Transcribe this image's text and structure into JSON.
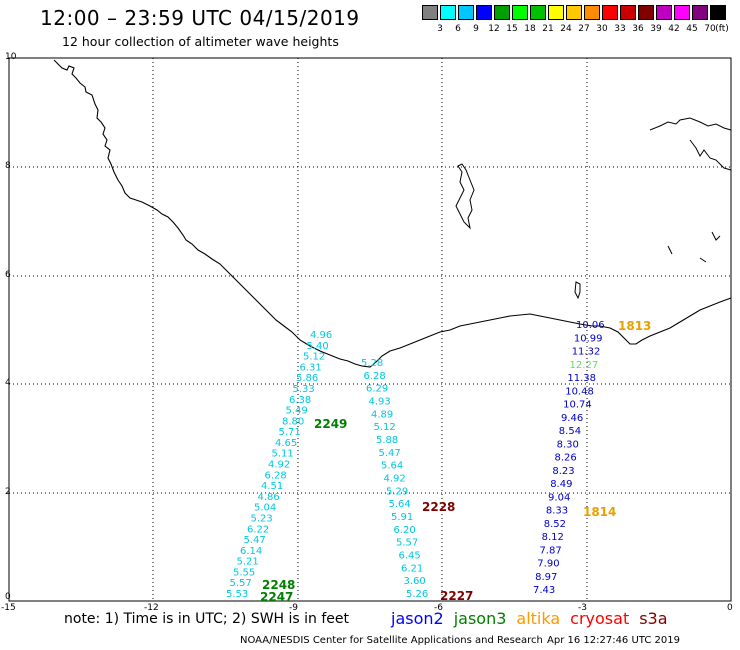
{
  "header": {
    "title": "12:00 – 23:59 UTC 04/15/2019",
    "subtitle": "12 hour collection of altimeter wave heights"
  },
  "colorbar": {
    "unit": "(ft)",
    "colors": [
      "#808080",
      "#00ffff",
      "#00c8ff",
      "#0000ff",
      "#00a000",
      "#00ff00",
      "#00c000",
      "#ffff00",
      "#ffc800",
      "#ff8c00",
      "#ff0000",
      "#c80000",
      "#800000",
      "#c000c0",
      "#ff00ff",
      "#800080",
      "#000000"
    ],
    "labels": [
      "3",
      "6",
      "9",
      "12",
      "15",
      "18",
      "21",
      "24",
      "27",
      "30",
      "33",
      "36",
      "39",
      "42",
      "45",
      "70"
    ]
  },
  "axes": {
    "x_ticks": [
      "-15",
      "-12",
      "-9",
      "-6",
      "-3",
      "0"
    ],
    "y_ticks": [
      "0",
      "2",
      "4",
      "6",
      "8",
      "10"
    ]
  },
  "passes": [
    {
      "id": "2249",
      "color": "#008000",
      "obs_color": "#00c8e0",
      "values": [
        "4.96",
        "5.40",
        "5.12",
        "6.31",
        "5.86",
        "5.33",
        "6.38",
        "5.49",
        "8.80",
        "5.71",
        "4.65",
        "5.11",
        "4.92",
        "6.28",
        "4.51",
        "4.86",
        "5.04",
        "5.23",
        "6.22",
        "5.47",
        "6.14",
        "5.21",
        "5.55",
        "5.57",
        "5.53"
      ]
    },
    {
      "id": "2248",
      "color": "#008000"
    },
    {
      "id": "2247",
      "color": "#008000"
    },
    {
      "id": "2228",
      "color": "#800000",
      "obs_color": "#00c8e0",
      "values": [
        "5.28",
        "6.28",
        "6.29",
        "4.93",
        "4.89",
        "5.12",
        "5.88",
        "5.47",
        "5.64",
        "4.92",
        "5.29",
        "5.64",
        "5.91",
        "6.20",
        "5.57",
        "6.45",
        "6.21",
        "3.60",
        "5.26"
      ]
    },
    {
      "id": "2227",
      "color": "#800000"
    },
    {
      "id": "1813",
      "color": "#e8a000",
      "obs_color": "#0000c8",
      "values": [
        "10.06",
        "10.99",
        "11.32",
        "12.27",
        "11.38",
        "10.48",
        "10.74",
        "9.46",
        "8.54",
        "8.30",
        "8.26",
        "8.23",
        "8.49",
        "9.04",
        "8.33",
        "8.52",
        "8.12",
        "7.87",
        "7.90",
        "8.97",
        "7.43"
      ]
    },
    {
      "id": "1814",
      "color": "#e8a000"
    }
  ],
  "notes": {
    "note": "note:  1) Time is in UTC;  2) SWH is in feet",
    "legend": [
      {
        "label": "jason2",
        "color": "#0000ff"
      },
      {
        "label": "jason3",
        "color": "#008000"
      },
      {
        "label": "altika",
        "color": "#ff9900"
      },
      {
        "label": "cryosat",
        "color": "#ff0000"
      },
      {
        "label": "s3a",
        "color": "#800000"
      }
    ],
    "credit": "NOAA/NESDIS Center for Satellite Applications and Research",
    "timestamp": "Apr 16 12:27:46 UTC 2019"
  }
}
